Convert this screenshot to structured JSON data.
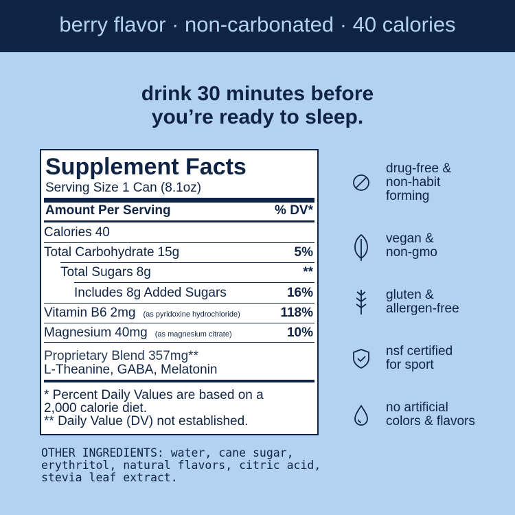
{
  "header": {
    "title": "berry flavor · non-carbonated · 40 calories"
  },
  "tagline": {
    "lines": [
      "drink 30 minutes before",
      "you’re ready to sleep."
    ]
  },
  "facts": {
    "title": "Supplement Facts",
    "serving": "Serving Size 1 Can (8.1oz)",
    "amount_header": "Amount Per Serving",
    "dv_header": "% DV*",
    "rows": [
      {
        "name": "Calories",
        "amount": "40"
      },
      {
        "name": "Total Carbohydrate",
        "amount": "15g",
        "dv": "5%"
      },
      {
        "name": "Total Sugars",
        "amount": "8g",
        "dv": "**"
      },
      {
        "name": "Includes 8g Added Sugars",
        "dv": "16%"
      },
      {
        "name": "Vitamin B6",
        "amount": "2mg",
        "note": "(as pyridoxine hydrochloride)",
        "dv": "118%"
      },
      {
        "name": "Magnesium",
        "amount": "40mg",
        "note": "(as magnesium citrate)",
        "dv": "10%"
      }
    ],
    "blend": [
      "Proprietary Blend 357mg**",
      "L-Theanine, GABA, Melatonin"
    ],
    "footnotes": [
      "* Percent Daily Values are based on a",
      "2,000 calorie diet.",
      "** Daily Value (DV) not established."
    ]
  },
  "badges": [
    {
      "lines": [
        "drug-free &",
        "non-habit",
        "forming"
      ]
    },
    {
      "lines": [
        "vegan &",
        "non-gmo"
      ]
    },
    {
      "lines": [
        "gluten &",
        "allergen-free"
      ]
    },
    {
      "lines": [
        "nsf certified",
        "for sport"
      ]
    },
    {
      "lines": [
        "no artificial",
        "colors & flavors"
      ]
    }
  ],
  "other_ingredients": {
    "lines": [
      "OTHER INGREDIENTS: water, cane sugar,",
      "erythritol, natural flavors, citric acid,",
      "stevia leaf extract."
    ]
  }
}
